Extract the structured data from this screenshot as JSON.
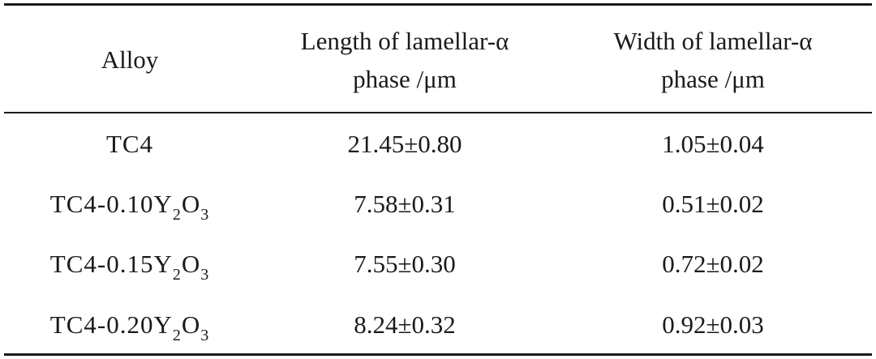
{
  "table": {
    "headers": {
      "alloy": "Alloy",
      "length_line1": "Length of lamellar-α",
      "length_line2": "phase /μm",
      "width_line1": "Width of lamellar-α",
      "width_line2": "phase /μm"
    },
    "rows": [
      {
        "alloy_prefix": "TC4",
        "alloy_y": "",
        "alloy_sub1": "",
        "alloy_o": "",
        "alloy_sub2": "",
        "length": "21.45±0.80",
        "width": "1.05±0.04"
      },
      {
        "alloy_prefix": "TC4-0.10Y",
        "alloy_y": "",
        "alloy_sub1": "2",
        "alloy_o": "O",
        "alloy_sub2": "3",
        "length": "7.58±0.31",
        "width": "0.51±0.02"
      },
      {
        "alloy_prefix": "TC4-0.15Y",
        "alloy_y": "",
        "alloy_sub1": "2",
        "alloy_o": "O",
        "alloy_sub2": "3",
        "length": "7.55±0.30",
        "width": "0.72±0.02"
      },
      {
        "alloy_prefix": "TC4-0.20Y",
        "alloy_y": "",
        "alloy_sub1": "2",
        "alloy_o": "O",
        "alloy_sub2": "3",
        "length": "8.24±0.32",
        "width": "0.92±0.03"
      }
    ]
  }
}
